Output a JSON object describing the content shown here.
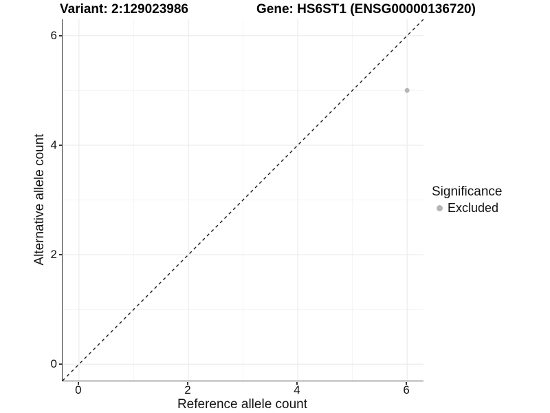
{
  "titles": {
    "variant": "Variant: 2:129023986",
    "gene": "Gene: HS6ST1 (ENSG00000136720)"
  },
  "legend": {
    "title": "Significance",
    "items": [
      {
        "label": "Excluded",
        "color": "#b5b5b5"
      }
    ]
  },
  "colors": {
    "axis_line": "#383838",
    "grid_major": "#e8e8e8",
    "grid_minor": "#f4f4f4",
    "reference_line": "#1a1a1a",
    "point": "#b5b5b5"
  },
  "chart_data": {
    "type": "scatter",
    "title": "Variant: 2:129023986 | Gene: HS6ST1 (ENSG00000136720)",
    "xlabel": "Reference allele count",
    "ylabel": "Alternative allele count",
    "xlim": [
      -0.3,
      6.3
    ],
    "ylim": [
      -0.3,
      6.3
    ],
    "xticks": [
      0,
      2,
      4,
      6
    ],
    "yticks": [
      0,
      2,
      4,
      6
    ],
    "xminor": [
      1,
      3,
      5
    ],
    "yminor": [
      1,
      3,
      5
    ],
    "grid": true,
    "legend": {
      "title": "Significance",
      "entries": [
        "Excluded"
      ],
      "position": "right"
    },
    "reference_line": {
      "equation": "y = x",
      "style": "dashed",
      "color": "#1a1a1a"
    },
    "series": [
      {
        "name": "Excluded",
        "color": "#b5b5b5",
        "points": [
          {
            "x": 6,
            "y": 5
          }
        ]
      }
    ]
  }
}
